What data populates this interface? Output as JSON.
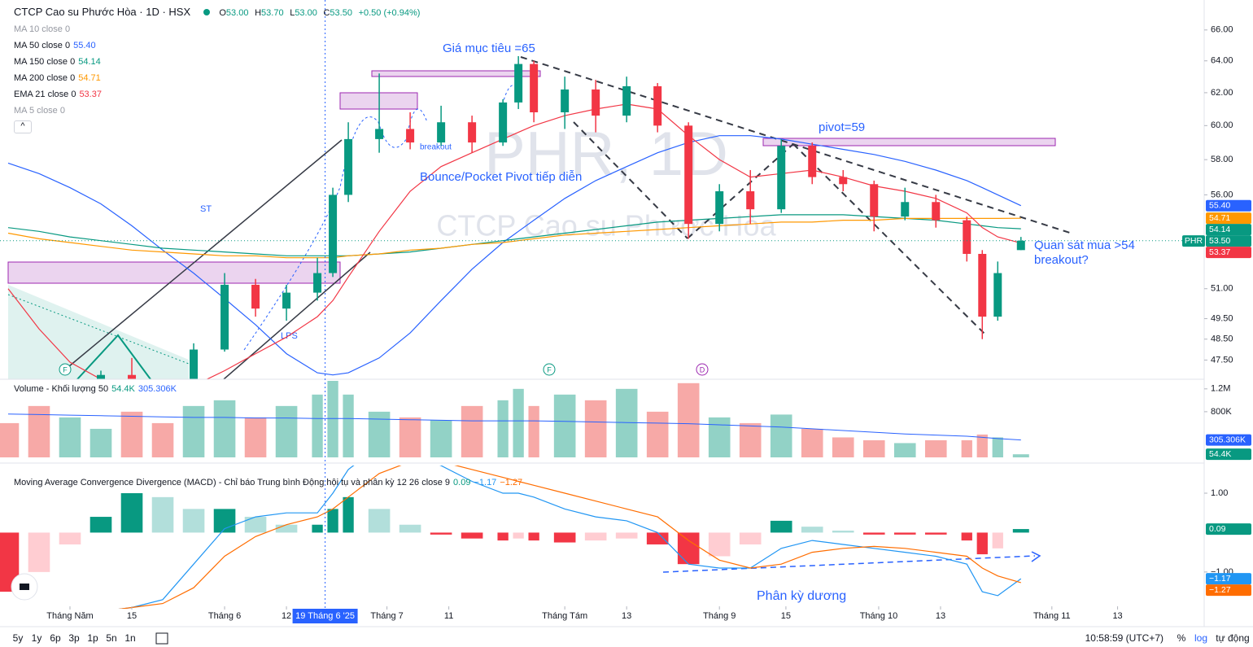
{
  "header": {
    "title": "CTCP Cao su Phước Hòa · 1D · HSX",
    "ohlc_labels": [
      "O",
      "H",
      "L",
      "C"
    ],
    "ohlc_values": [
      "53.00",
      "53.70",
      "53.00",
      "53.50"
    ],
    "change": "+0.50 (+0.94%)",
    "hidden_legend": [
      "MA 10 close 0",
      "MA 5 close 0"
    ],
    "volume_legend": "Volume - Khối lượng 50",
    "macd_legend": "Moving Average Convergence Divergence (MACD) - Chỉ báo Trung bình Động hội tụ và phân kỳ 12 26 close 9",
    "symbol": "PHR"
  },
  "annotations": {
    "target": "Giá mục tiêu =65",
    "bounce": "Bounce/Pocket Pivot tiếp diễn",
    "pivot": "pivot=59",
    "watch": "Quan sát mua >54",
    "breakout_q": "breakout?",
    "divergence": "Phân kỳ dương",
    "st": "ST",
    "lps": "LPS",
    "breakout": "breakout",
    "watermark_symbol": "PHR, 1D",
    "watermark_name": "CTCP Cao su Phước Hòa",
    "markers": [
      "F",
      "F",
      "D"
    ]
  },
  "toolbar": {
    "ranges": [
      "5y",
      "1y",
      "6p",
      "3p",
      "1p",
      "5n",
      "1n"
    ],
    "time": "10:58:59 (UTC+7)",
    "percent": "%",
    "log": "log",
    "auto": "tự động"
  },
  "chart_data": [
    {
      "type": "candlestick",
      "up_color": "#089981",
      "down_color": "#f23645",
      "log_scale": true,
      "x": [
        0,
        4,
        8,
        12,
        16,
        20,
        24,
        28,
        32,
        36,
        40,
        42,
        44,
        48,
        52,
        56,
        60,
        64,
        66,
        68,
        72,
        76,
        80,
        84,
        88,
        92,
        96,
        100,
        104,
        108,
        112,
        116,
        120,
        124,
        126,
        128,
        131
      ],
      "open": [
        45.2,
        45.0,
        44.6,
        45.4,
        46.8,
        46.4,
        45.4,
        48.0,
        51.2,
        50.0,
        50.8,
        51.8,
        56.0,
        59.2,
        59.8,
        59.0,
        60.2,
        59.0,
        61.4,
        63.8,
        60.8,
        62.2,
        60.6,
        62.4,
        60.0,
        54.4,
        56.2,
        55.2,
        58.8,
        57.0,
        56.6,
        54.8,
        55.6,
        54.6,
        52.8,
        49.6,
        53.0
      ],
      "high": [
        45.8,
        45.5,
        45.6,
        47.0,
        47.6,
        46.6,
        48.3,
        51.8,
        51.5,
        51.2,
        52.6,
        56.4,
        60.2,
        63.2,
        60.8,
        61.2,
        60.6,
        61.6,
        64.3,
        64.0,
        63.0,
        62.8,
        63.0,
        62.6,
        60.2,
        56.6,
        57.4,
        59.2,
        59.0,
        57.4,
        56.8,
        56.4,
        56.0,
        54.8,
        53.0,
        52.4,
        53.7
      ],
      "low": [
        44.6,
        44.2,
        44.3,
        45.1,
        46.2,
        45.0,
        45.2,
        47.9,
        49.6,
        49.4,
        50.4,
        51.6,
        55.6,
        58.4,
        58.6,
        58.8,
        58.4,
        58.8,
        61.0,
        60.2,
        59.8,
        59.6,
        60.2,
        59.6,
        53.6,
        54.0,
        54.4,
        55.0,
        56.6,
        56.2,
        54.0,
        54.6,
        54.2,
        52.4,
        48.5,
        49.4,
        53.0
      ],
      "close": [
        45.0,
        44.6,
        45.4,
        46.8,
        46.4,
        45.4,
        48.0,
        51.2,
        50.0,
        50.8,
        51.8,
        56.0,
        59.2,
        59.8,
        59.0,
        60.2,
        59.0,
        61.4,
        63.8,
        60.8,
        62.2,
        60.6,
        62.4,
        60.0,
        54.4,
        56.2,
        55.2,
        58.8,
        57.0,
        56.6,
        54.8,
        55.6,
        54.6,
        52.8,
        49.6,
        51.8,
        53.5
      ],
      "series": [
        {
          "name": "MA 50 close 0",
          "color": "#2962ff",
          "last_label": "55.40",
          "values": [
            57.8,
            57.2,
            56.4,
            55.5,
            54.3,
            53.0,
            51.8,
            50.5,
            49.2,
            47.8,
            46.9,
            46.8,
            46.9,
            47.6,
            48.8,
            50.4,
            52.0,
            53.4,
            54.0,
            54.6,
            55.8,
            56.8,
            57.6,
            58.4,
            59.0,
            59.4,
            59.4,
            59.2,
            58.9,
            58.6,
            58.3,
            57.9,
            57.4,
            56.8,
            56.4,
            56.0,
            55.4
          ]
        },
        {
          "name": "MA 150 close 0",
          "color": "#089981",
          "last_label": "54.14",
          "values": [
            54.2,
            54.0,
            53.7,
            53.5,
            53.3,
            53.1,
            53.0,
            52.9,
            52.8,
            52.7,
            52.7,
            52.7,
            52.7,
            52.8,
            52.9,
            53.1,
            53.3,
            53.5,
            53.6,
            53.7,
            53.9,
            54.1,
            54.3,
            54.5,
            54.6,
            54.7,
            54.8,
            54.9,
            54.9,
            54.9,
            54.8,
            54.7,
            54.6,
            54.4,
            54.3,
            54.2,
            54.14
          ]
        },
        {
          "name": "MA 200 close 0",
          "color": "#ff9800",
          "last_label": "54.71",
          "values": [
            53.9,
            53.6,
            53.4,
            53.2,
            53.0,
            52.9,
            52.8,
            52.7,
            52.7,
            52.6,
            52.6,
            52.6,
            52.7,
            52.8,
            53.0,
            53.1,
            53.3,
            53.4,
            53.5,
            53.6,
            53.8,
            53.9,
            54.0,
            54.1,
            54.2,
            54.3,
            54.4,
            54.5,
            54.5,
            54.6,
            54.6,
            54.7,
            54.7,
            54.7,
            54.7,
            54.7,
            54.71
          ]
        },
        {
          "name": "EMA 21 close 0",
          "color": "#f23645",
          "last_label": "53.37",
          "values": [
            51.0,
            49.0,
            47.4,
            46.6,
            46.2,
            46.0,
            46.3,
            47.0,
            47.8,
            48.6,
            49.6,
            50.4,
            51.6,
            54.0,
            56.2,
            57.6,
            58.4,
            59.2,
            59.6,
            60.0,
            60.6,
            61.0,
            61.3,
            61.0,
            59.4,
            58.0,
            57.0,
            57.2,
            57.4,
            57.0,
            56.5,
            56.2,
            55.8,
            55.0,
            54.2,
            53.7,
            53.37
          ]
        }
      ],
      "ylim": [
        46.6,
        68.0
      ],
      "yticks": [
        {
          "value": 66,
          "label": "66.00"
        },
        {
          "value": 64,
          "label": "64.00"
        },
        {
          "value": 62,
          "label": "62.00"
        },
        {
          "value": 60,
          "label": "60.00"
        },
        {
          "value": 58,
          "label": "58.00"
        },
        {
          "value": 56,
          "label": "56.00"
        },
        {
          "value": 51,
          "label": "51.00"
        },
        {
          "value": 49.5,
          "label": "49.50"
        },
        {
          "value": 48.5,
          "label": "48.50"
        },
        {
          "value": 47.5,
          "label": "47.50"
        }
      ],
      "xlim": [
        -1.05,
        154.7
      ],
      "xticks": [
        {
          "value": 8,
          "label": "Tháng Năm"
        },
        {
          "value": 16,
          "label": "15"
        },
        {
          "value": 28,
          "label": "Tháng 6"
        },
        {
          "value": 36,
          "label": "12"
        },
        {
          "value": 49,
          "label": "Tháng 7"
        },
        {
          "value": 57,
          "label": "11"
        },
        {
          "value": 72,
          "label": "Tháng Tám"
        },
        {
          "value": 80,
          "label": "13"
        },
        {
          "value": 92,
          "label": "Tháng 9"
        },
        {
          "value": 100.6,
          "label": "15"
        },
        {
          "value": 112.6,
          "label": "Tháng 10"
        },
        {
          "value": 120.6,
          "label": "13"
        },
        {
          "value": 135,
          "label": "Tháng 11"
        },
        {
          "value": 143.5,
          "label": "13"
        }
      ],
      "crosshair": {
        "x": 41,
        "label": "19 Tháng 6 '25"
      }
    },
    {
      "type": "bar",
      "up_color": "#92d2c6",
      "down_color": "#f7a9a7",
      "values": [
        600000,
        900000,
        700000,
        500000,
        800000,
        600000,
        900000,
        1000000,
        700000,
        900000,
        1100000,
        1400000,
        1100000,
        800000,
        700000,
        650000,
        900000,
        1000000,
        1200000,
        900000,
        1100000,
        1000000,
        1200000,
        800000,
        1300000,
        700000,
        600000,
        750000,
        500000,
        350000,
        300000,
        250000,
        300000,
        300000,
        400000,
        350000,
        54400
      ],
      "last_label": "54.4K",
      "ma_color": "#2962ff",
      "ma_last_label": "305.306K",
      "ma_values": [
        760000,
        750000,
        740000,
        730000,
        720000,
        710000,
        700000,
        700000,
        690000,
        690000,
        680000,
        680000,
        680000,
        670000,
        660000,
        650000,
        640000,
        640000,
        640000,
        640000,
        630000,
        620000,
        610000,
        600000,
        590000,
        570000,
        550000,
        530000,
        500000,
        470000,
        440000,
        410000,
        390000,
        370000,
        350000,
        330000,
        305306
      ],
      "ylim": [
        0,
        1340000
      ],
      "yticks": [
        {
          "value": 1200000,
          "label": "1.2M"
        },
        {
          "value": 800000,
          "label": "800K"
        }
      ]
    },
    {
      "type": "macd",
      "last_label": "0.09",
      "values": [
        -1.5,
        -1.0,
        -0.3,
        0.4,
        1.0,
        0.9,
        0.6,
        0.6,
        0.4,
        0.2,
        0.2,
        0.6,
        0.9,
        0.6,
        0.2,
        -0.05,
        -0.15,
        -0.2,
        -0.15,
        -0.2,
        -0.25,
        -0.2,
        -0.15,
        -0.3,
        -0.8,
        -0.6,
        -0.3,
        0.3,
        0.15,
        0.05,
        -0.05,
        -0.05,
        -0.05,
        -0.2,
        -0.55,
        -0.4,
        0.09
      ],
      "series": [
        {
          "name": "MACD",
          "color": "#2196f3",
          "last_label": "−1.17",
          "values": [
            -2.0,
            -2.0,
            -2.0,
            -2.0,
            -1.9,
            -1.7,
            -0.8,
            0.1,
            0.4,
            0.5,
            0.5,
            1.0,
            1.6,
            2.2,
            2.0,
            1.7,
            1.3,
            1.0,
            1.0,
            0.9,
            0.6,
            0.4,
            0.3,
            0.0,
            -0.8,
            -0.9,
            -0.9,
            -0.4,
            -0.2,
            -0.3,
            -0.4,
            -0.5,
            -0.6,
            -0.8,
            -1.5,
            -1.6,
            -1.17
          ]
        },
        {
          "name": "Signal",
          "color": "#ff6d00",
          "last_label": "−1.27",
          "values": [
            -2.0,
            -2.0,
            -2.0,
            -2.0,
            -1.9,
            -1.8,
            -1.4,
            -0.6,
            -0.1,
            0.2,
            0.4,
            0.6,
            0.9,
            1.5,
            1.8,
            1.8,
            1.6,
            1.4,
            1.3,
            1.2,
            1.0,
            0.8,
            0.6,
            0.4,
            -0.2,
            -0.7,
            -0.9,
            -0.8,
            -0.5,
            -0.4,
            -0.35,
            -0.4,
            -0.5,
            -0.6,
            -0.9,
            -1.1,
            -1.27
          ]
        }
      ],
      "ylim": [
        -1.87,
        1.64
      ],
      "yticks": [
        {
          "value": 1,
          "label": "1.00"
        },
        {
          "value": -1,
          "label": "−1.00"
        }
      ]
    }
  ]
}
